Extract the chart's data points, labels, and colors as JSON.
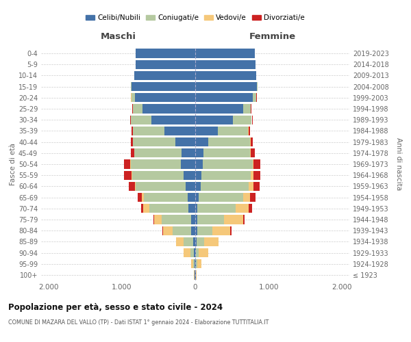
{
  "age_groups": [
    "100+",
    "95-99",
    "90-94",
    "85-89",
    "80-84",
    "75-79",
    "70-74",
    "65-69",
    "60-64",
    "55-59",
    "50-54",
    "45-49",
    "40-44",
    "35-39",
    "30-34",
    "25-29",
    "20-24",
    "15-19",
    "10-14",
    "5-9",
    "0-4"
  ],
  "birth_years": [
    "≤ 1923",
    "1924-1928",
    "1929-1933",
    "1934-1938",
    "1939-1943",
    "1944-1948",
    "1949-1953",
    "1954-1958",
    "1959-1963",
    "1964-1968",
    "1969-1973",
    "1974-1978",
    "1979-1983",
    "1984-1988",
    "1989-1993",
    "1994-1998",
    "1999-2003",
    "2004-2008",
    "2009-2013",
    "2014-2018",
    "2019-2023"
  ],
  "colors": {
    "celibi": "#4472a8",
    "coniugati": "#b5c9a0",
    "vedovi": "#f5c87a",
    "divorziati": "#cc2222"
  },
  "maschi": {
    "celibi": [
      5,
      10,
      15,
      30,
      60,
      60,
      90,
      100,
      130,
      160,
      200,
      190,
      270,
      420,
      600,
      720,
      820,
      870,
      830,
      810,
      810
    ],
    "coniugati": [
      5,
      20,
      50,
      130,
      250,
      400,
      540,
      600,
      680,
      700,
      680,
      640,
      580,
      430,
      280,
      130,
      50,
      10,
      0,
      0,
      0
    ],
    "vedovi": [
      5,
      30,
      90,
      100,
      130,
      100,
      80,
      30,
      15,
      10,
      5,
      5,
      0,
      0,
      0,
      0,
      5,
      0,
      0,
      0,
      0
    ],
    "divorziati": [
      0,
      0,
      0,
      0,
      5,
      10,
      30,
      50,
      80,
      100,
      90,
      40,
      30,
      20,
      10,
      5,
      5,
      0,
      0,
      0,
      0
    ]
  },
  "femmine": {
    "celibi": [
      5,
      10,
      10,
      20,
      30,
      30,
      30,
      50,
      70,
      80,
      100,
      110,
      180,
      310,
      510,
      650,
      780,
      840,
      830,
      820,
      810
    ],
    "coniugati": [
      5,
      20,
      40,
      100,
      200,
      360,
      520,
      600,
      660,
      680,
      680,
      640,
      570,
      410,
      260,
      110,
      50,
      10,
      0,
      0,
      0
    ],
    "vedovi": [
      10,
      50,
      130,
      200,
      250,
      260,
      180,
      100,
      60,
      30,
      15,
      10,
      5,
      5,
      5,
      0,
      5,
      0,
      0,
      0,
      0
    ],
    "divorziati": [
      0,
      0,
      0,
      0,
      10,
      20,
      40,
      70,
      90,
      100,
      90,
      50,
      30,
      20,
      10,
      5,
      5,
      0,
      0,
      0,
      0
    ]
  },
  "title1": "Popolazione per età, sesso e stato civile - 2024",
  "title2": "COMUNE DI MAZARA DEL VALLO (TP) - Dati ISTAT 1° gennaio 2024 - Elaborazione TUTTITALIA.IT",
  "xlabel_left": "Maschi",
  "xlabel_right": "Femmine",
  "ylabel_left": "Fasce di età",
  "ylabel_right": "Anni di nascita",
  "legend_labels": [
    "Celibi/Nubili",
    "Coniugati/e",
    "Vedovi/e",
    "Divorziati/e"
  ],
  "xlim": 2100,
  "background": "#ffffff"
}
